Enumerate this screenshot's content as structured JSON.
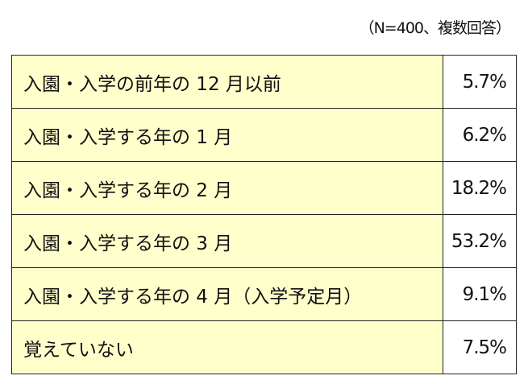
{
  "note": "（N=400、複数回答）",
  "colors": {
    "label_bg": "#ffffcc",
    "value_bg": "#ffffff"
  },
  "rows": [
    {
      "label": "入園・入学の前年の 12 月以前",
      "value": "5.7%"
    },
    {
      "label": "入園・入学する年の 1 月",
      "value": "6.2%"
    },
    {
      "label": "入園・入学する年の 2 月",
      "value": "18.2%"
    },
    {
      "label": "入園・入学する年の 3 月",
      "value": "53.2%"
    },
    {
      "label": "入園・入学する年の 4 月（入学予定月）",
      "value": "9.1%"
    },
    {
      "label": "覚えていない",
      "value": "7.5%"
    }
  ]
}
